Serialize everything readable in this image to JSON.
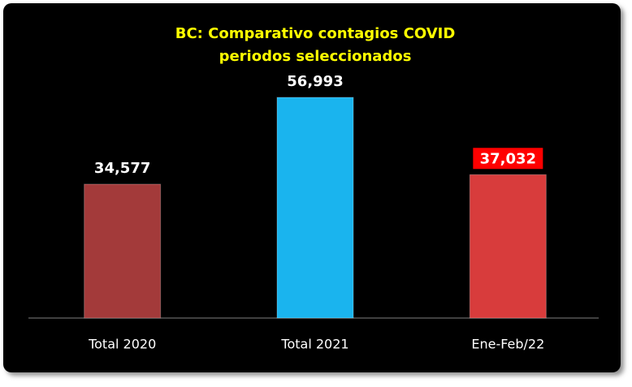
{
  "chart_data": {
    "type": "bar",
    "title": [
      "BC: Comparativo contagios COVID",
      "periodos seleccionados"
    ],
    "categories": [
      "Total 2020",
      "Total 2021",
      "Ene-Feb/22"
    ],
    "values": [
      34577,
      56993,
      37032
    ],
    "value_labels": [
      "34,577",
      "56,993",
      "37,032"
    ],
    "colors": [
      "#a33a3a",
      "#1ab4ee",
      "#d83c3c"
    ],
    "value_label_box_colors": [
      null,
      null,
      "#ff0000"
    ],
    "title_color": "#ffff00"
  }
}
